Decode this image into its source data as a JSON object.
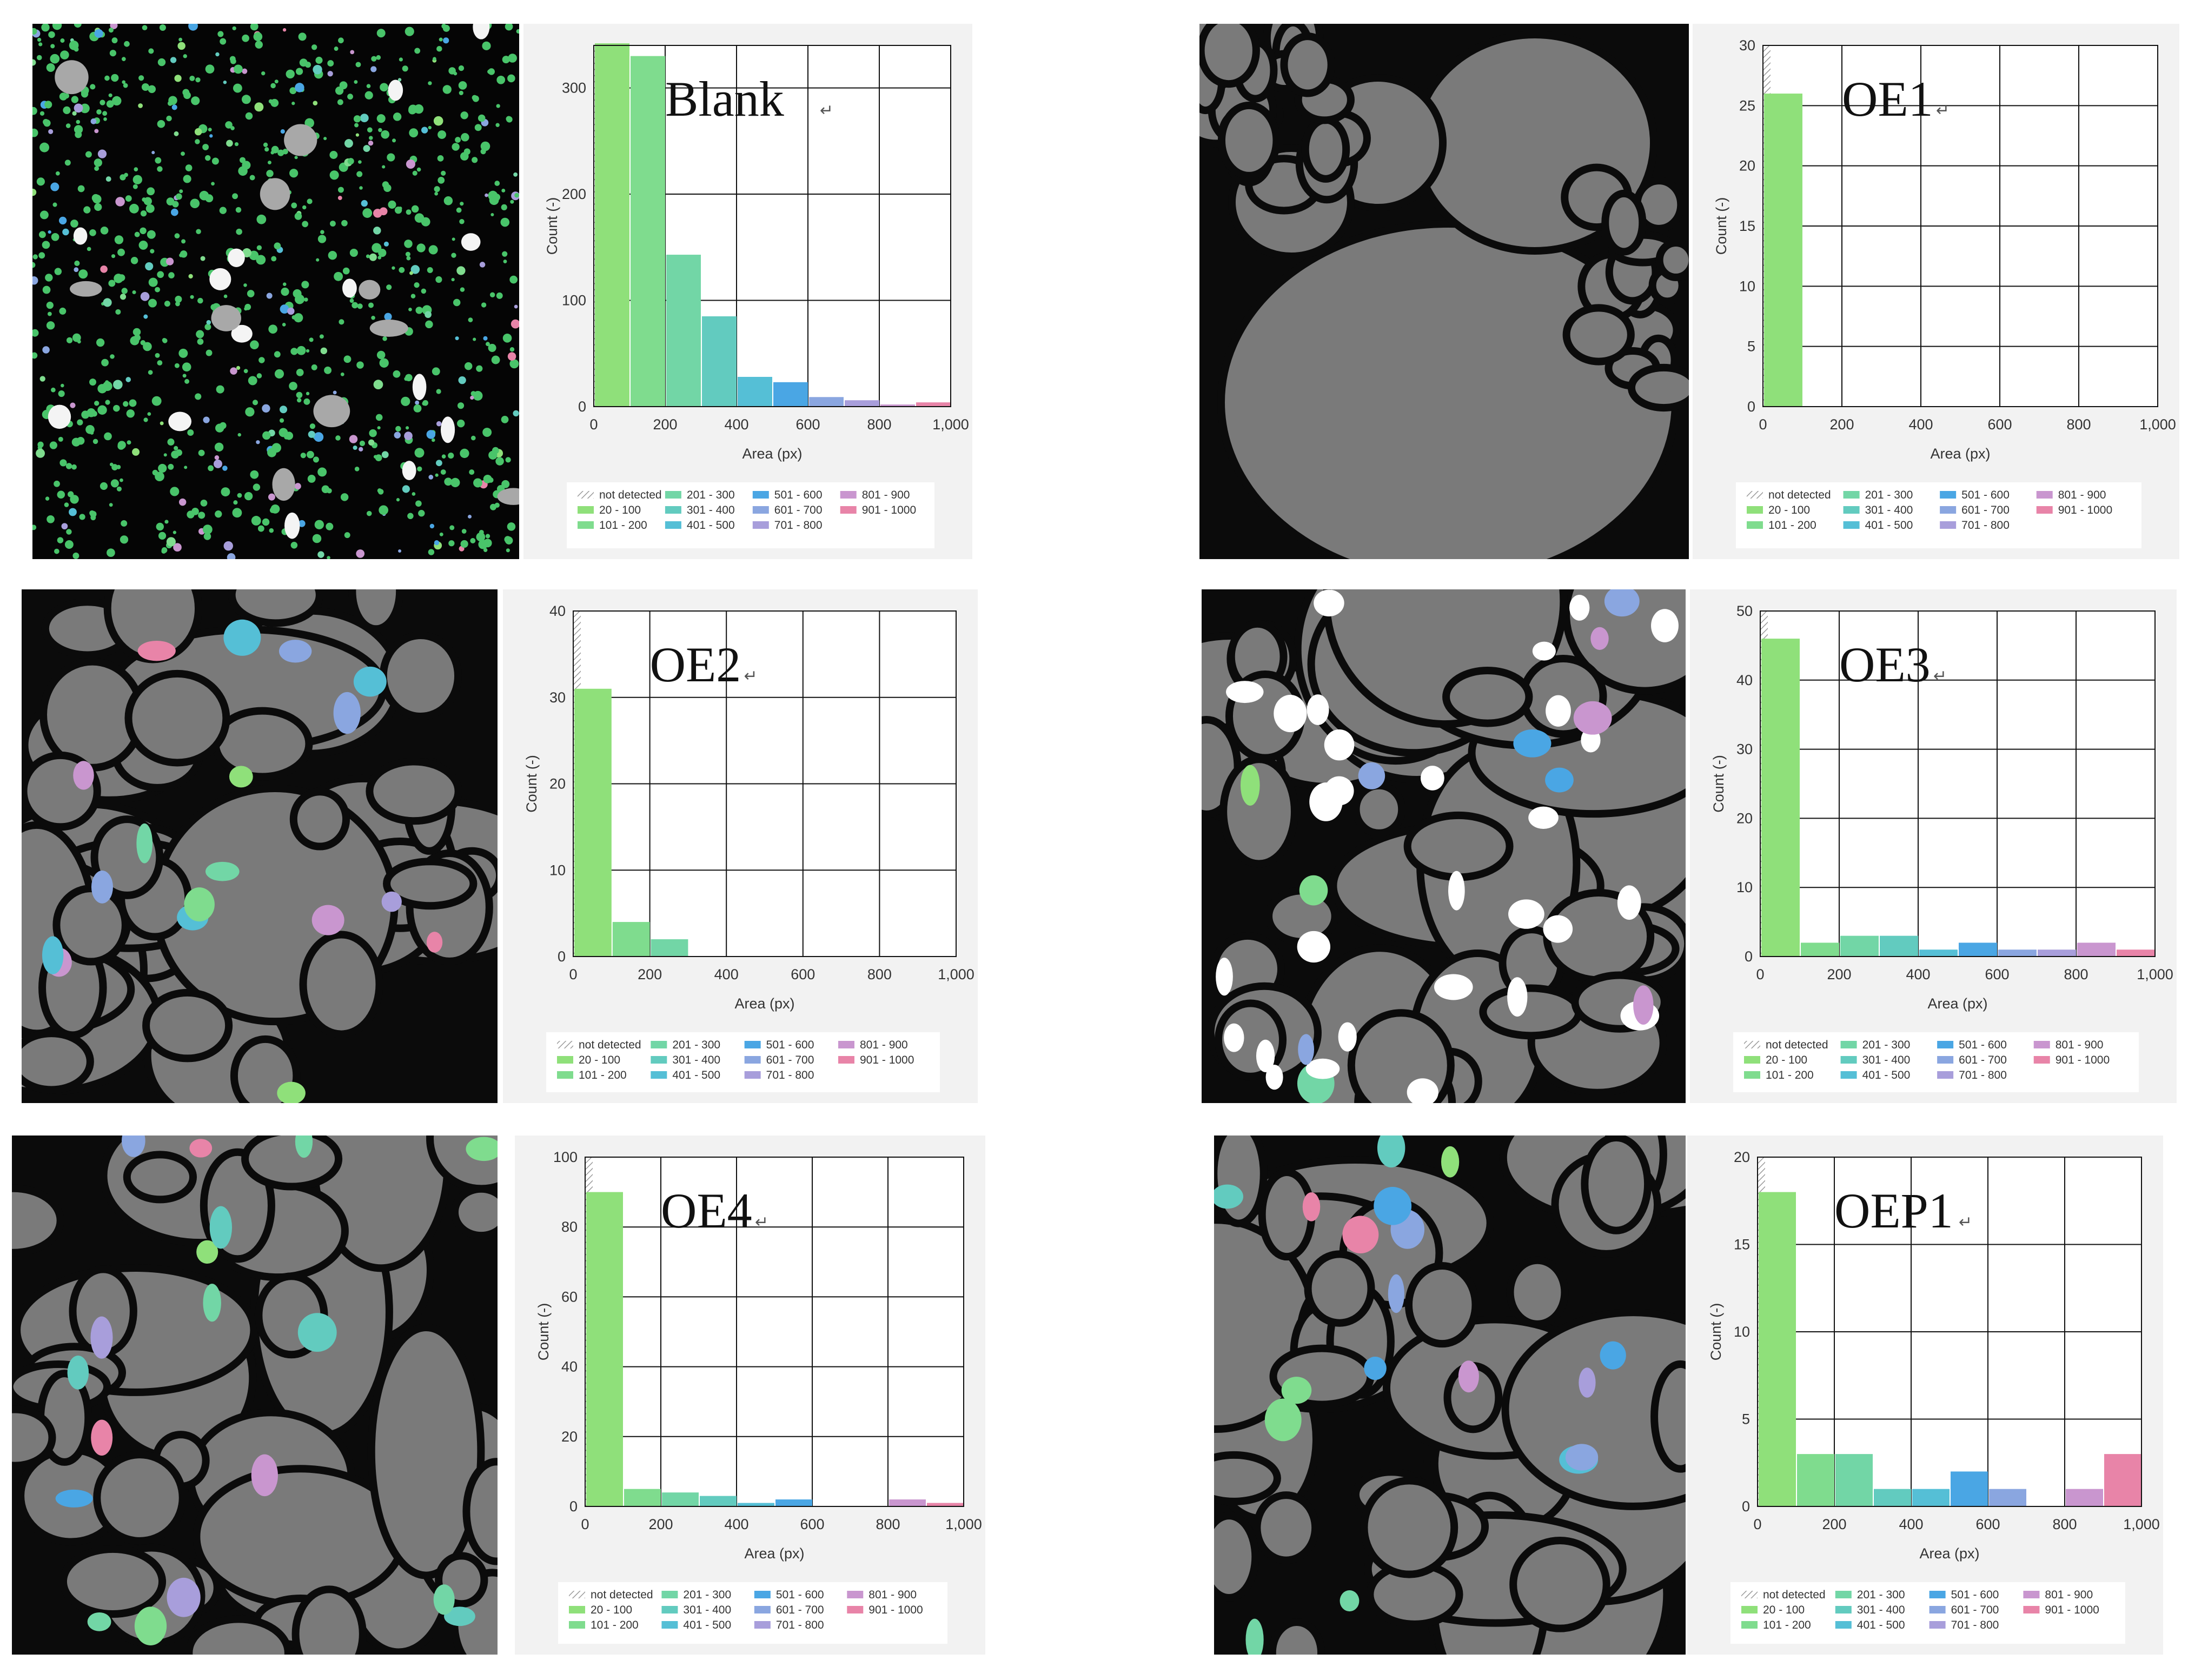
{
  "axis": {
    "x_label": "Area (px)",
    "y_label": "Count (-)"
  },
  "legend": [
    {
      "label": "not detected",
      "color": "#bdbdbd",
      "hatch": true
    },
    {
      "label": "20 - 100",
      "color": "#8fe07a"
    },
    {
      "label": "101 - 200",
      "color": "#7fdc8e"
    },
    {
      "label": "201 - 300",
      "color": "#72d6a6"
    },
    {
      "label": "301 - 400",
      "color": "#62cbbf"
    },
    {
      "label": "401 - 500",
      "color": "#55bfd6"
    },
    {
      "label": "501 - 600",
      "color": "#4aa6e4"
    },
    {
      "label": "601 - 700",
      "color": "#8aa6e0"
    },
    {
      "label": "701 - 800",
      "color": "#a89edb"
    },
    {
      "label": "801 - 900",
      "color": "#c996cf"
    },
    {
      "label": "901 - 1000",
      "color": "#e884a8"
    }
  ],
  "chart_data": [
    {
      "type": "bar",
      "title": "Blank",
      "xlabel": "Area (px)",
      "ylabel": "Count (-)",
      "bins": [
        "not detected",
        "20 - 100",
        "101 - 200",
        "201 - 300",
        "301 - 400",
        "401 - 500",
        "501 - 600",
        "601 - 700",
        "701 - 800",
        "801 - 900",
        "901 - 1000"
      ],
      "values": [
        null,
        342,
        330,
        143,
        85,
        28,
        23,
        9,
        6,
        2,
        4
      ],
      "ylim": [
        0,
        340
      ],
      "yticks": [
        0,
        100,
        200,
        300
      ],
      "xlim": [
        0,
        1000
      ],
      "xticks": [
        "0",
        "200",
        "400",
        "600",
        "800",
        "1,000"
      ],
      "grid": true,
      "legend_position": "bottom"
    },
    {
      "type": "bar",
      "title": "OE1",
      "xlabel": "Area (px)",
      "ylabel": "Count (-)",
      "bins": [
        "not detected",
        "20 - 100",
        "101 - 200",
        "201 - 300",
        "301 - 400",
        "401 - 500",
        "501 - 600",
        "601 - 700",
        "701 - 800",
        "801 - 900",
        "901 - 1000"
      ],
      "values": [
        null,
        26,
        0,
        0,
        0,
        0,
        0,
        0,
        0,
        0,
        0
      ],
      "ylim": [
        0,
        30
      ],
      "yticks": [
        0,
        5,
        10,
        15,
        20,
        25,
        30
      ],
      "xlim": [
        0,
        1000
      ],
      "xticks": [
        "0",
        "200",
        "400",
        "600",
        "800",
        "1,000"
      ],
      "grid": true,
      "legend_position": "bottom"
    },
    {
      "type": "bar",
      "title": "OE2",
      "xlabel": "Area (px)",
      "ylabel": "Count (-)",
      "bins": [
        "not detected",
        "20 - 100",
        "101 - 200",
        "201 - 300",
        "301 - 400",
        "401 - 500",
        "501 - 600",
        "601 - 700",
        "701 - 800",
        "801 - 900",
        "901 - 1000"
      ],
      "values": [
        null,
        31,
        4,
        2,
        0,
        0,
        0,
        0,
        0,
        0,
        0
      ],
      "ylim": [
        0,
        40
      ],
      "yticks": [
        0,
        10,
        20,
        30,
        40
      ],
      "xlim": [
        0,
        1000
      ],
      "xticks": [
        "0",
        "200",
        "400",
        "600",
        "800",
        "1,000"
      ],
      "grid": true,
      "legend_position": "bottom"
    },
    {
      "type": "bar",
      "title": "OE3",
      "xlabel": "Area (px)",
      "ylabel": "Count (-)",
      "bins": [
        "not detected",
        "20 - 100",
        "101 - 200",
        "201 - 300",
        "301 - 400",
        "401 - 500",
        "501 - 600",
        "601 - 700",
        "701 - 800",
        "801 - 900",
        "901 - 1000"
      ],
      "values": [
        null,
        46,
        2,
        3,
        3,
        1,
        2,
        1,
        1,
        2,
        1
      ],
      "ylim": [
        0,
        50
      ],
      "yticks": [
        0,
        10,
        20,
        30,
        40,
        50
      ],
      "xlim": [
        0,
        1000
      ],
      "xticks": [
        "0",
        "200",
        "400",
        "600",
        "800",
        "1,000"
      ],
      "grid": true,
      "legend_position": "bottom"
    },
    {
      "type": "bar",
      "title": "OE4",
      "xlabel": "Area (px)",
      "ylabel": "Count (-)",
      "bins": [
        "not detected",
        "20 - 100",
        "101 - 200",
        "201 - 300",
        "301 - 400",
        "401 - 500",
        "501 - 600",
        "601 - 700",
        "701 - 800",
        "801 - 900",
        "901 - 1000"
      ],
      "values": [
        null,
        90,
        5,
        4,
        3,
        1,
        2,
        0,
        0,
        2,
        1
      ],
      "ylim": [
        0,
        100
      ],
      "yticks": [
        0,
        20,
        40,
        60,
        80,
        100
      ],
      "xlim": [
        0,
        1000
      ],
      "xticks": [
        "0",
        "200",
        "400",
        "600",
        "800",
        "1,000"
      ],
      "grid": true,
      "legend_position": "bottom"
    },
    {
      "type": "bar",
      "title": "OEP1",
      "xlabel": "Area (px)",
      "ylabel": "Count (-)",
      "bins": [
        "not detected",
        "20 - 100",
        "101 - 200",
        "201 - 300",
        "301 - 400",
        "401 - 500",
        "501 - 600",
        "601 - 700",
        "701 - 800",
        "801 - 900",
        "901 - 1000"
      ],
      "values": [
        null,
        18,
        3,
        3,
        1,
        1,
        2,
        1,
        0,
        1,
        3
      ],
      "ylim": [
        0,
        20
      ],
      "yticks": [
        0,
        5,
        10,
        15,
        20
      ],
      "xlim": [
        0,
        1000
      ],
      "xticks": [
        "0",
        "200",
        "400",
        "600",
        "800",
        "1,000"
      ],
      "grid": true,
      "legend_position": "bottom"
    }
  ]
}
